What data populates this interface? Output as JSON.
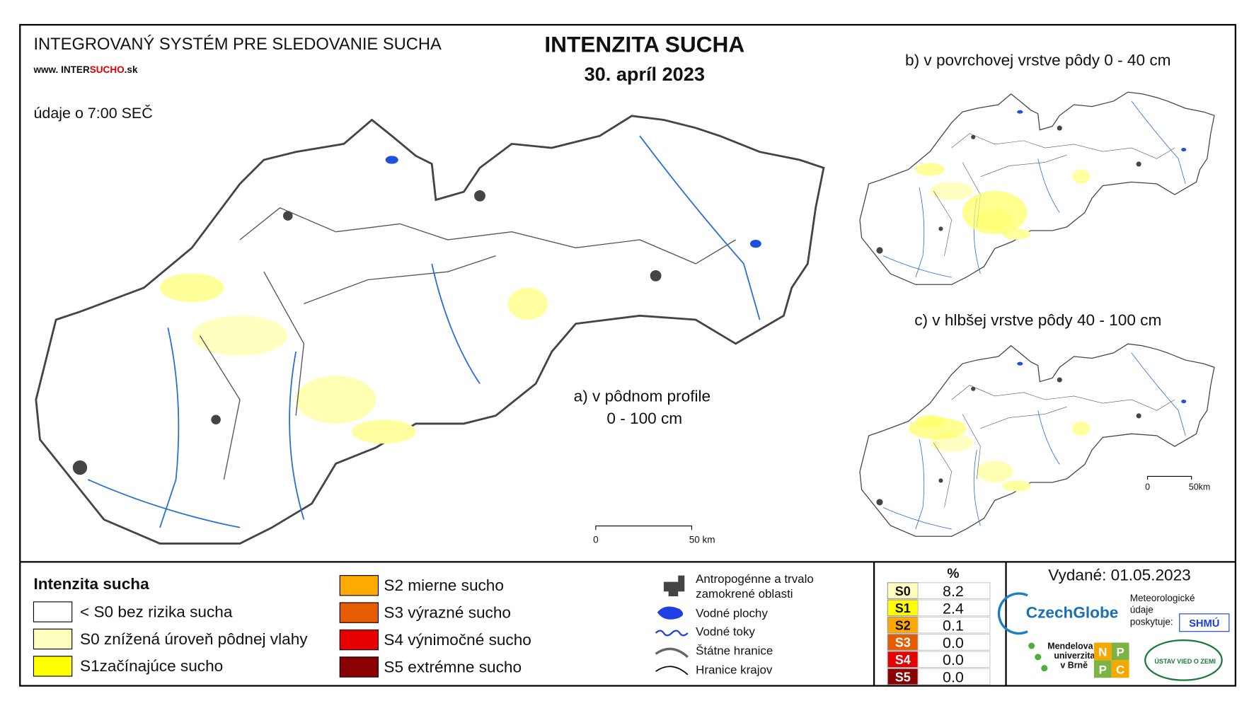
{
  "header": {
    "system": "INTEGROVANÝ SYSTÉM PRE SLEDOVANIE SUCHA",
    "web": [
      "www. INTER",
      "SUCHO",
      ".sk"
    ],
    "note": "údaje o 7:00 SEČ",
    "title": "INTENZITA SUCHA",
    "date": "30. apríl 2023"
  },
  "maps": {
    "a": {
      "label": [
        "a) v pôdnom profile",
        "0 - 100 cm"
      ],
      "scale": [
        "0",
        "50 km"
      ]
    },
    "b": {
      "label": "b) v povrchovej vrstve pôdy 0 - 40 cm"
    },
    "c": {
      "label": "c) v hlbšej vrstve pôdy 40 - 100 cm",
      "scale": [
        "0",
        "50km"
      ]
    }
  },
  "legend": {
    "title": "Intenzita sucha",
    "items": [
      {
        "label": "< S0 bez rizika sucha",
        "color": "#ffffff"
      },
      {
        "label": "S0 znížená úroveň pôdnej vlahy",
        "color": "#ffffc0"
      },
      {
        "label": "S1začínajúce sucho",
        "color": "#ffff00"
      },
      {
        "label": "S2 mierne sucho",
        "color": "#ffaa00"
      },
      {
        "label": "S3 výrazné sucho",
        "color": "#e65c00"
      },
      {
        "label": "S4 výnimočné sucho",
        "color": "#e60000"
      },
      {
        "label": "S5 extrémne sucho",
        "color": "#8b0000"
      }
    ]
  },
  "symbols": [
    "Antropogénne a trvalo zamokrené oblasti",
    "Vodné plochy",
    "Vodné toky",
    "Štátne hranice",
    "Hranice krajov"
  ],
  "stats": {
    "header": "%",
    "rows": [
      {
        "class": "S0",
        "value": "8.2",
        "color": "#ffffc0"
      },
      {
        "class": "S1",
        "value": "2.4",
        "color": "#ffff00"
      },
      {
        "class": "S2",
        "value": "0.1",
        "color": "#ffaa00"
      },
      {
        "class": "S3",
        "value": "0.0",
        "color": "#e65c00"
      },
      {
        "class": "S4",
        "value": "0.0",
        "color": "#e60000"
      },
      {
        "class": "S5",
        "value": "0.0",
        "color": "#8b0000"
      }
    ]
  },
  "issued": "Vydané: 01.05.2023",
  "logos": {
    "czechglobe": "CzechGlobe",
    "meteo": [
      "Meteorologické",
      "údaje",
      "poskytuje:"
    ],
    "shmu": "SHMÚ",
    "mendel": [
      "Mendelova",
      "univerzita",
      "v Brně"
    ],
    "nppc": [
      "N",
      "P",
      "P",
      "C"
    ],
    "uvz": "ÚSTAV VIED O ZEMI"
  }
}
